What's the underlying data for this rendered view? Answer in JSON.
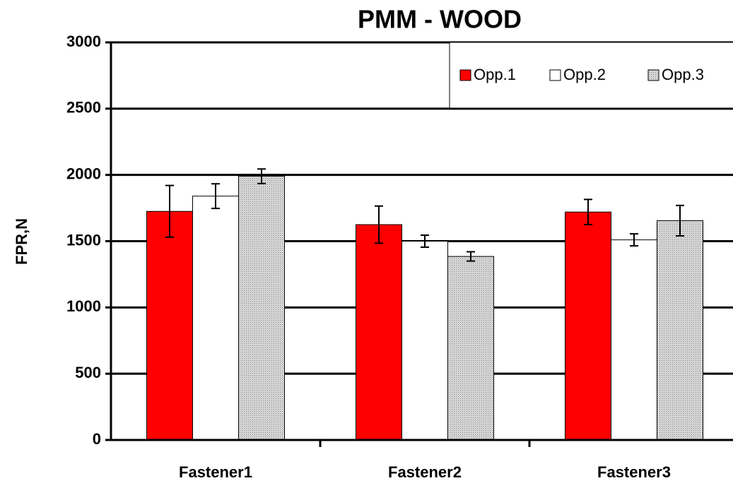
{
  "chart_data": {
    "type": "bar",
    "title": "PMM - WOOD",
    "y_label": "FPR,N",
    "categories": [
      "Fastener1",
      "Fastener2",
      "Fastener3"
    ],
    "series": [
      {
        "name": "Opp.1",
        "color": "#ff0000",
        "values": [
          1725,
          1625,
          1720
        ],
        "errors": [
          195,
          140,
          95
        ]
      },
      {
        "name": "Opp.2",
        "color": "#ffffff",
        "values": [
          1840,
          1500,
          1510
        ],
        "errors": [
          93,
          45,
          45
        ]
      },
      {
        "name": "Opp.3",
        "color": "#c8c8c8",
        "values": [
          1990,
          1385,
          1655
        ],
        "errors": [
          55,
          35,
          115
        ]
      }
    ],
    "ylim": [
      0,
      3000
    ],
    "yticks": [
      0,
      500,
      1000,
      1500,
      2000,
      2500,
      3000
    ],
    "grid": true,
    "legend": "top-right"
  }
}
